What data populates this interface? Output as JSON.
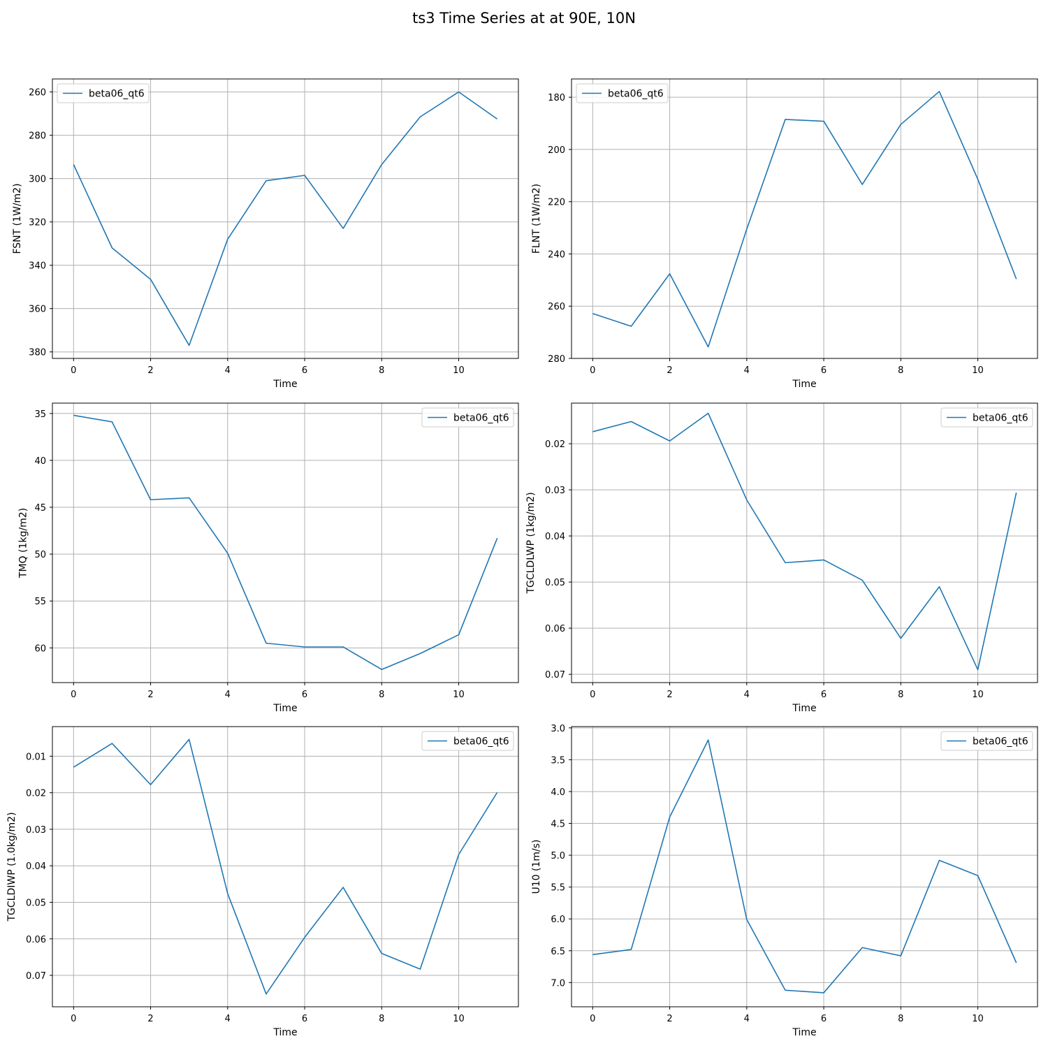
{
  "figure": {
    "title": "ts3 Time Series at at 90E, 10N"
  },
  "colors": {
    "line": "#1f77b4",
    "grid": "#b0b0b0",
    "frame": "#000000",
    "legend_border": "#cccccc"
  },
  "chart_data": [
    {
      "type": "line",
      "xlabel": "Time",
      "ylabel": "FSNT (1W/m2)",
      "xlim": [
        -0.55,
        11.55
      ],
      "ylim": [
        383,
        254
      ],
      "y_inverted": true,
      "xticks": [
        0,
        2,
        4,
        6,
        8,
        10
      ],
      "yticks": [
        260,
        280,
        300,
        320,
        340,
        360,
        380
      ],
      "grid": true,
      "legend_position": "upper-left",
      "series": [
        {
          "name": "beta06_qt6",
          "x": [
            0,
            1,
            2,
            3,
            4,
            5,
            6,
            7,
            8,
            9,
            10,
            11
          ],
          "values": [
            293.5,
            332,
            346.5,
            377,
            328,
            301,
            298.5,
            323,
            293.5,
            271.5,
            260,
            272.5
          ]
        }
      ]
    },
    {
      "type": "line",
      "xlabel": "Time",
      "ylabel": "FLNT (1W/m2)",
      "xlim": [
        -0.55,
        11.55
      ],
      "ylim": [
        280,
        173
      ],
      "y_inverted": true,
      "xticks": [
        0,
        2,
        4,
        6,
        8,
        10
      ],
      "yticks": [
        180,
        200,
        220,
        240,
        260,
        280
      ],
      "grid": true,
      "legend_position": "upper-left",
      "series": [
        {
          "name": "beta06_qt6",
          "x": [
            0,
            1,
            2,
            3,
            4,
            5,
            6,
            7,
            8,
            9,
            10,
            11
          ],
          "values": [
            262.8,
            267.7,
            247.6,
            275.6,
            230.5,
            188.5,
            189.2,
            213.4,
            190.4,
            177.8,
            211.4,
            249.6
          ]
        }
      ]
    },
    {
      "type": "line",
      "xlabel": "Time",
      "ylabel": "TMQ (1kg/m2)",
      "xlim": [
        -0.55,
        11.55
      ],
      "ylim": [
        63.7,
        33.9
      ],
      "y_inverted": true,
      "xticks": [
        0,
        2,
        4,
        6,
        8,
        10
      ],
      "yticks": [
        35,
        40,
        45,
        50,
        55,
        60
      ],
      "grid": true,
      "legend_position": "upper-right",
      "series": [
        {
          "name": "beta06_qt6",
          "x": [
            0,
            1,
            2,
            3,
            4,
            5,
            6,
            7,
            8,
            9,
            10,
            11
          ],
          "values": [
            35.2,
            35.9,
            44.2,
            44.0,
            49.9,
            59.5,
            59.9,
            59.9,
            62.3,
            60.6,
            58.6,
            48.3
          ]
        }
      ]
    },
    {
      "type": "line",
      "xlabel": "Time",
      "ylabel": "TGCLDLWP (1kg/m2)",
      "xlim": [
        -0.55,
        11.55
      ],
      "ylim": [
        0.0718,
        0.0112
      ],
      "y_inverted": true,
      "xticks": [
        0,
        2,
        4,
        6,
        8,
        10
      ],
      "yticks": [
        0.02,
        0.03,
        0.04,
        0.05,
        0.06,
        0.07
      ],
      "ytick_labels": [
        "0.02",
        "0.03",
        "0.04",
        "0.05",
        "0.06",
        "0.07"
      ],
      "grid": true,
      "legend_position": "upper-right",
      "series": [
        {
          "name": "beta06_qt6",
          "x": [
            0,
            1,
            2,
            3,
            4,
            5,
            6,
            7,
            8,
            9,
            10,
            11
          ],
          "values": [
            0.0174,
            0.0152,
            0.0194,
            0.0134,
            0.0322,
            0.0458,
            0.0452,
            0.0496,
            0.0622,
            0.051,
            0.069,
            0.0306
          ]
        }
      ]
    },
    {
      "type": "line",
      "xlabel": "Time",
      "ylabel": "TGCLDIWP (1.0kg/m2)",
      "xlim": [
        -0.55,
        11.55
      ],
      "ylim": [
        0.0786,
        0.0019
      ],
      "y_inverted": true,
      "xticks": [
        0,
        2,
        4,
        6,
        8,
        10
      ],
      "yticks": [
        0.01,
        0.02,
        0.03,
        0.04,
        0.05,
        0.06,
        0.07
      ],
      "ytick_labels": [
        "0.01",
        "0.02",
        "0.03",
        "0.04",
        "0.05",
        "0.06",
        "0.07"
      ],
      "grid": true,
      "legend_position": "upper-right",
      "series": [
        {
          "name": "beta06_qt6",
          "x": [
            0,
            1,
            2,
            3,
            4,
            5,
            6,
            7,
            8,
            9,
            10,
            11
          ],
          "values": [
            0.013,
            0.0065,
            0.0178,
            0.0054,
            0.0476,
            0.0751,
            0.0596,
            0.0459,
            0.064,
            0.0683,
            0.0369,
            0.0199
          ]
        }
      ]
    },
    {
      "type": "line",
      "xlabel": "Time",
      "ylabel": "U10 (1m/s)",
      "xlim": [
        -0.55,
        11.55
      ],
      "ylim": [
        7.38,
        2.98
      ],
      "y_inverted": true,
      "xticks": [
        0,
        2,
        4,
        6,
        8,
        10
      ],
      "yticks": [
        3.0,
        3.5,
        4.0,
        4.5,
        5.0,
        5.5,
        6.0,
        6.5,
        7.0
      ],
      "ytick_labels": [
        "3.0",
        "3.5",
        "4.0",
        "4.5",
        "5.0",
        "5.5",
        "6.0",
        "6.5",
        "7.0"
      ],
      "grid": true,
      "legend_position": "upper-right",
      "series": [
        {
          "name": "beta06_qt6",
          "x": [
            0,
            1,
            2,
            3,
            4,
            5,
            6,
            7,
            8,
            9,
            10,
            11
          ],
          "values": [
            6.56,
            6.48,
            4.4,
            3.19,
            6.01,
            7.12,
            7.16,
            6.45,
            6.58,
            5.08,
            5.32,
            6.69
          ]
        }
      ]
    }
  ]
}
